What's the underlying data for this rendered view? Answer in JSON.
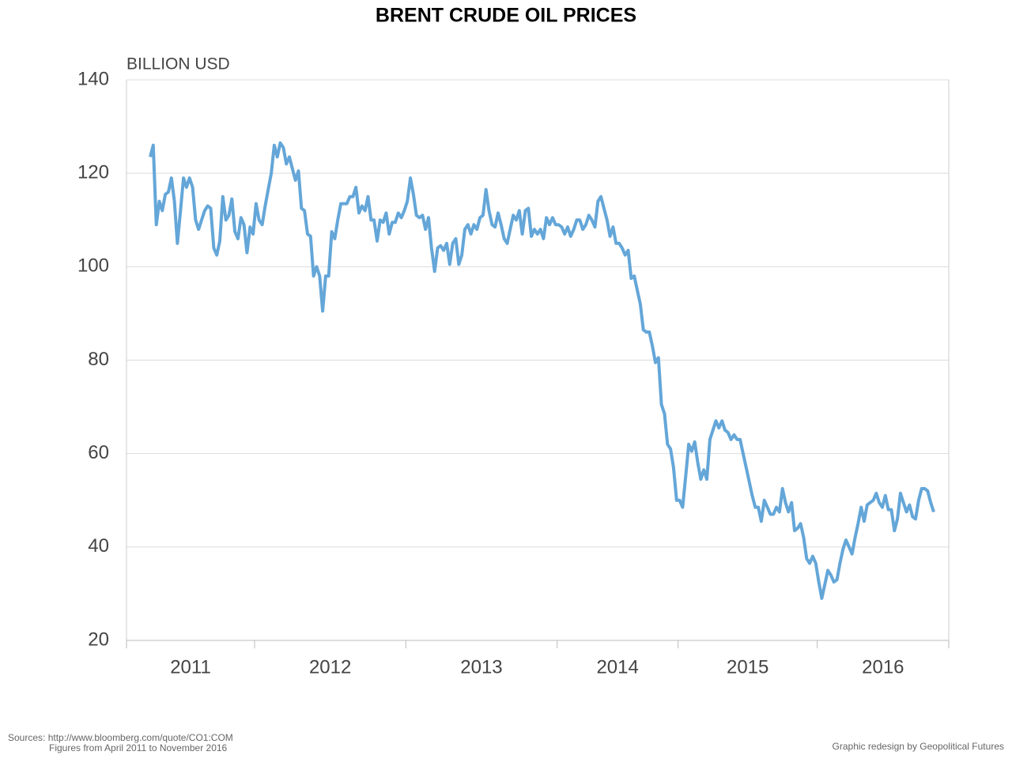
{
  "chart_data": {
    "type": "line",
    "title": "BRENT CRUDE OIL PRICES",
    "y_axis_label": "BILLION USD",
    "color": "#64a6d8",
    "ylim": [
      20,
      140
    ],
    "yticks": [
      20,
      40,
      60,
      80,
      100,
      120,
      140
    ],
    "grid": true,
    "categories": [
      "2011",
      "2012",
      "2013",
      "2014",
      "2015",
      "2016"
    ],
    "values": [
      [
        123.5,
        126,
        109,
        114,
        112,
        115.5,
        116,
        119,
        114,
        105,
        112,
        119,
        117,
        119,
        117,
        110,
        108,
        110,
        112,
        113,
        112.5,
        104,
        102.5,
        105.5,
        115,
        110,
        111,
        114.5,
        107.5,
        106,
        110.5,
        109,
        103,
        108.5,
        107
      ],
      [
        113.5,
        110,
        109,
        113,
        116.5,
        120,
        126,
        123.5,
        126.5,
        125.5,
        122,
        123.5,
        121,
        118.5,
        120.5,
        112.5,
        112,
        107,
        106.5,
        98,
        100,
        98,
        90.5,
        98,
        98,
        107.5,
        106,
        110,
        113.5,
        113.5,
        113.5,
        115,
        115,
        117,
        111.5,
        113,
        112,
        115,
        110,
        110,
        105.5,
        110,
        109.5,
        111.5,
        107,
        109.5,
        109.5,
        111.5,
        110.5,
        112
      ],
      [
        114,
        119,
        115.5,
        111,
        110.5,
        111,
        108,
        110.5,
        104,
        99,
        104,
        104.5,
        103.5,
        105,
        100.5,
        105,
        106,
        100.5,
        102.5,
        108,
        109,
        107,
        109,
        108,
        110.5,
        111,
        116.5,
        112,
        109,
        108.5,
        111.5,
        109,
        106,
        105,
        108,
        111,
        110,
        112,
        107,
        112,
        112.5,
        106.5,
        108,
        107,
        108,
        106,
        110.5,
        109,
        110.5,
        109
      ],
      [
        109,
        108.5,
        107,
        108.5,
        106.5,
        108,
        110,
        110,
        108,
        109,
        111,
        110,
        108.5,
        114,
        115,
        112.5,
        110,
        106.5,
        108.5,
        105,
        105,
        104,
        102.5,
        103.5,
        97.5,
        98,
        95,
        92,
        86.5,
        86,
        86,
        83,
        79.5,
        80.5,
        70.5,
        68.5,
        62,
        61,
        57,
        50
      ],
      [
        50,
        48.5,
        55,
        62,
        60.5,
        62.5,
        58,
        54.5,
        56.5,
        54.5,
        63,
        65,
        67,
        65.5,
        67,
        65,
        64.5,
        63,
        64,
        63,
        63,
        60,
        57,
        54,
        51,
        48.5,
        48.5,
        45.5,
        50,
        48.5,
        47,
        47,
        48.5,
        47.5,
        52.5,
        49.5,
        47.5,
        49.5,
        43.5,
        44,
        45,
        42,
        37.5,
        36.5,
        38,
        36.5
      ],
      [
        32.5,
        29,
        32,
        35,
        34,
        32.5,
        33,
        36.5,
        39.5,
        41.5,
        40,
        38.5,
        42,
        45,
        48.5,
        45.5,
        49,
        49.5,
        50,
        51.5,
        49.5,
        48.5,
        51,
        48,
        48,
        43.5,
        46,
        51.5,
        49.5,
        47.5,
        49,
        46.5,
        46,
        50,
        52.5,
        52.5,
        52,
        49.5,
        47.5
      ]
    ],
    "source": "Sources: http://www.bloomberg.com/quote/CO1:COM",
    "note": "Figures from April 2011 to November 2016",
    "credit": "Graphic redesign by Geopolitical Futures"
  }
}
